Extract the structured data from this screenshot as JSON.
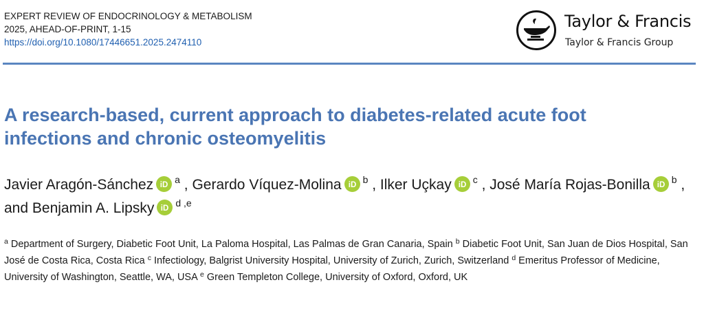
{
  "journal": {
    "name": "EXPERT REVIEW OF ENDOCRINOLOGY & METABOLISM",
    "issue": "2025, AHEAD-OF-PRINT, 1-15",
    "doi": "https://doi.org/10.1080/17446651.2025.2474110"
  },
  "publisher": {
    "name": "Taylor & Francis",
    "group": "Taylor & Francis Group",
    "emblem_icon": "lamp-emblem-icon"
  },
  "colors": {
    "title": "#4a75b3",
    "rule": "#5b86c1",
    "link": "#1f5fb0",
    "orcid": "#a6ce39"
  },
  "article": {
    "title_line1": "A research-based, current approach to diabetes-related acute foot",
    "title_line2": "infections and chronic osteomyelitis"
  },
  "authors": [
    {
      "name": "Javier Aragón-Sánchez",
      "aff": "a",
      "after": " ,"
    },
    {
      "name": "Gerardo Víquez-Molina",
      "aff": "b",
      "after": " ,"
    },
    {
      "name": "Ilker Uçkay",
      "aff": "c",
      "after": " ,"
    },
    {
      "name": "José María Rojas-Bonilla",
      "aff": "b",
      "after": " , and"
    },
    {
      "name": "Benjamin A. Lipsky",
      "aff": "d ,e",
      "after": ""
    }
  ],
  "orcid_label": "iD",
  "affiliations": [
    {
      "mark": "a",
      "text": " Department of Surgery, Diabetic Foot Unit, La Paloma Hospital, Las Palmas de Gran Canaria, Spain "
    },
    {
      "mark": "b",
      "text": " Diabetic Foot Unit, San Juan de Dios Hospital, San José de Costa Rica, Costa Rica "
    },
    {
      "mark": "c",
      "text": " Infectiology, Balgrist University Hospital, University of Zurich, Zurich, Switzerland "
    },
    {
      "mark": "d",
      "text": " Emeritus Professor of Medicine, University of Washington, Seattle, WA, USA "
    },
    {
      "mark": "e",
      "text": " Green Templeton College, University of Oxford, Oxford, UK"
    }
  ]
}
